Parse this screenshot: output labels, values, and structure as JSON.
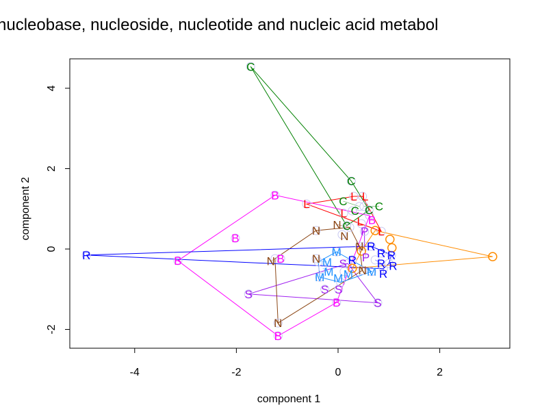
{
  "chart_data": {
    "type": "scatter",
    "title": "nucleobase, nucleoside, nucleotide and nucleic acid metabol",
    "xlabel": "component 1",
    "ylabel": "component 2",
    "xlim": [
      -5.3,
      3.4
    ],
    "ylim": [
      -2.5,
      4.75
    ],
    "xticks": [
      "-4",
      "-2",
      "0",
      "2"
    ],
    "xtick_values": [
      -4,
      -2,
      0,
      2
    ],
    "yticks": [
      "-2",
      "0",
      "2",
      "4"
    ],
    "ytick_values": [
      -2,
      0,
      2,
      4
    ],
    "grid": false,
    "hulls": true,
    "series": [
      {
        "name": "C",
        "color": "#008000",
        "points": [
          [
            -1.72,
            4.54
          ],
          [
            0.26,
            1.69
          ],
          [
            0.28,
            0.95
          ],
          [
            0.42,
            1.06
          ],
          [
            0.51,
            1.06
          ],
          [
            0.61,
            0.97
          ],
          [
            0.17,
            0.58
          ]
        ]
      },
      {
        "name": "L",
        "color": "#FF0000",
        "points": [
          [
            0.31,
            1.31
          ],
          [
            0.48,
            1.31
          ],
          [
            -0.62,
            1.12
          ],
          [
            0.11,
            0.89
          ],
          [
            0.46,
            0.63
          ],
          [
            0.85,
            0.44
          ]
        ]
      },
      {
        "name": "B",
        "color": "#FF00FF",
        "points": [
          [
            -1.24,
            1.34
          ],
          [
            -2.02,
            0.27
          ],
          [
            -3.15,
            -0.29
          ],
          [
            -1.13,
            -0.24
          ],
          [
            -1.18,
            -2.16
          ],
          [
            -0.03,
            -1.33
          ],
          [
            0.62,
            0.83
          ]
        ]
      },
      {
        "name": "P",
        "color": "#A020F0",
        "points": [
          [
            0.52,
            0.44
          ],
          [
            0.52,
            0.07
          ]
        ]
      },
      {
        "name": "S",
        "color": "#A020F0",
        "points": [
          [
            -1.76,
            -1.12
          ],
          [
            -0.26,
            -1.0
          ],
          [
            0.01,
            -1.0
          ],
          [
            0.78,
            -1.34
          ],
          [
            0.19,
            -0.36
          ]
        ]
      },
      {
        "name": "N",
        "color": "#8B4513",
        "points": [
          [
            -0.43,
            0.46
          ],
          [
            0.08,
            0.36
          ],
          [
            0.23,
            0.54
          ],
          [
            -1.24,
            -0.24
          ],
          [
            -0.43,
            -0.24
          ],
          [
            -1.18,
            -1.84
          ],
          [
            0.42,
            0.07
          ],
          [
            0.48,
            -0.53
          ]
        ]
      },
      {
        "name": "M",
        "color": "#1E90FF",
        "points": [
          [
            -0.03,
            -0.07
          ],
          [
            -0.39,
            -0.32
          ],
          [
            -0.3,
            -0.48
          ],
          [
            -0.36,
            -0.7
          ],
          [
            0.05,
            -0.83
          ],
          [
            0.66,
            -0.56
          ],
          [
            0.12,
            -0.56
          ]
        ]
      },
      {
        "name": "R",
        "color": "#0000FF",
        "points": [
          [
            -4.95,
            -0.15
          ],
          [
            0.65,
            0.07
          ],
          [
            0.28,
            -0.27
          ],
          [
            0.85,
            -0.1
          ],
          [
            1.05,
            -0.15
          ],
          [
            0.73,
            -0.27
          ],
          [
            1.0,
            -0.36
          ],
          [
            0.89,
            -0.49
          ]
        ]
      },
      {
        "name": "O",
        "color": "#FF8C00",
        "points": [
          [
            3.04,
            -0.19
          ],
          [
            0.73,
            0.46
          ],
          [
            1.02,
            0.24
          ],
          [
            1.06,
            0.03
          ],
          [
            0.46,
            -0.05
          ],
          [
            0.28,
            -0.48
          ]
        ]
      }
    ]
  }
}
